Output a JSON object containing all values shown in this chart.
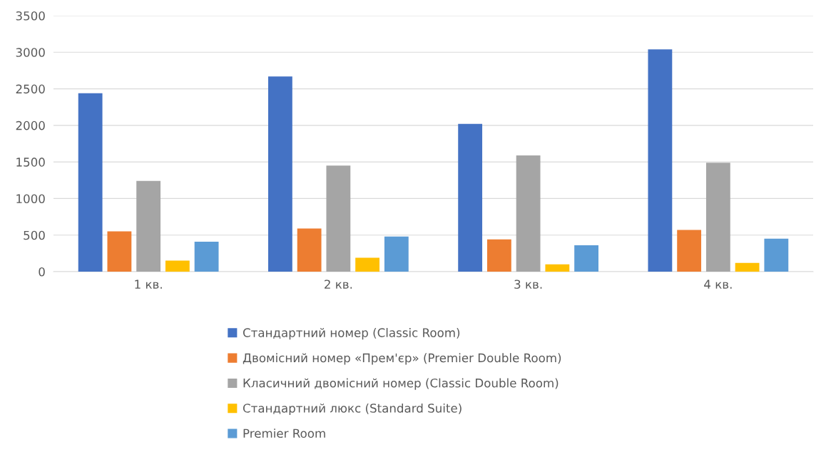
{
  "chart_data": {
    "type": "bar",
    "categories": [
      "1 кв.",
      "2 кв.",
      "3 кв.",
      "4 кв."
    ],
    "series": [
      {
        "name": "Стандартний номер (Classic Room)",
        "color": "#4472c4",
        "values": [
          2440,
          2670,
          2020,
          3040
        ]
      },
      {
        "name": "Двомісний номер «Прем'єр» (Premier Double Room)",
        "color": "#ed7d31",
        "values": [
          550,
          590,
          440,
          570
        ]
      },
      {
        "name": "Класичний двомісний номер (Classic Double Room)",
        "color": "#a5a5a5",
        "values": [
          1240,
          1450,
          1590,
          1490
        ]
      },
      {
        "name": "Стандартний люкс (Standard Suite)",
        "color": "#ffc000",
        "values": [
          150,
          190,
          100,
          120
        ]
      },
      {
        "name": "Premier Room",
        "color": "#5b9bd5",
        "values": [
          410,
          480,
          360,
          450
        ]
      }
    ],
    "ylim": [
      0,
      3500
    ],
    "yticks": [
      0,
      500,
      1000,
      1500,
      2000,
      2500,
      3000,
      3500
    ],
    "grid": "y",
    "legend": "bottom"
  }
}
